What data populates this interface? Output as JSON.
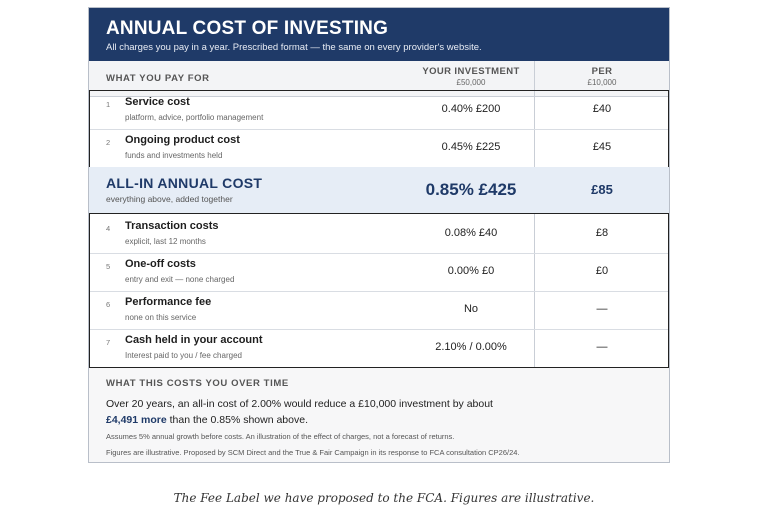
{
  "header": {
    "title": "ANNUAL COST OF INVESTING",
    "subtitle": "All charges you pay in a year. Prescribed format — the same on every provider's website."
  },
  "columns": {
    "what": "WHAT YOU PAY FOR",
    "investment": "YOUR INVESTMENT",
    "investment_sub": "£50,000",
    "per": "PER",
    "per_sub": "£10,000"
  },
  "rows_top": [
    {
      "num": "1",
      "name": "Service cost",
      "desc": "platform, advice, portfolio management",
      "value": "0.40% £200",
      "per": "£40"
    },
    {
      "num": "2",
      "name": "Ongoing product cost",
      "desc": "funds and investments held",
      "value": "0.45% £225",
      "per": "£45"
    }
  ],
  "all_in": {
    "name": "ALL-IN ANNUAL COST",
    "desc": "everything above, added together",
    "value": "0.85% £425",
    "per": "£85"
  },
  "rows_bottom": [
    {
      "num": "4",
      "name": "Transaction costs",
      "desc": "explicit, last 12 months",
      "value": "0.08% £40",
      "per": "£8"
    },
    {
      "num": "5",
      "name": "One-off costs",
      "desc": "entry and exit — none charged",
      "value": "0.00% £0",
      "per": "£0"
    },
    {
      "num": "6",
      "name": "Performance fee",
      "desc": "none on this service",
      "value": "No",
      "per": "—"
    },
    {
      "num": "7",
      "name": "Cash held in your account",
      "desc": "Interest paid to you / fee charged",
      "value": "2.10% / 0.00%",
      "per": "—"
    }
  ],
  "footer": {
    "heading": "WHAT THIS COSTS YOU OVER TIME",
    "text_before": "Over 20 years, an all-in cost of 2.00% would reduce a £10,000 investment by about",
    "highlight": "£4,491 more",
    "text_after": "than the 0.85% shown above.",
    "note1": "Assumes 5% annual growth before costs. An illustration of the effect of charges, not a forecast of returns.",
    "note2": "Figures are illustrative. Proposed by SCM Direct and the True & Fair Campaign in its response to FCA consultation CP26/24."
  },
  "caption": "The Fee Label we have proposed to the FCA. Figures are illustrative.",
  "colors": {
    "navy": "#1f3a68",
    "allin_bg": "#e6edf6"
  }
}
